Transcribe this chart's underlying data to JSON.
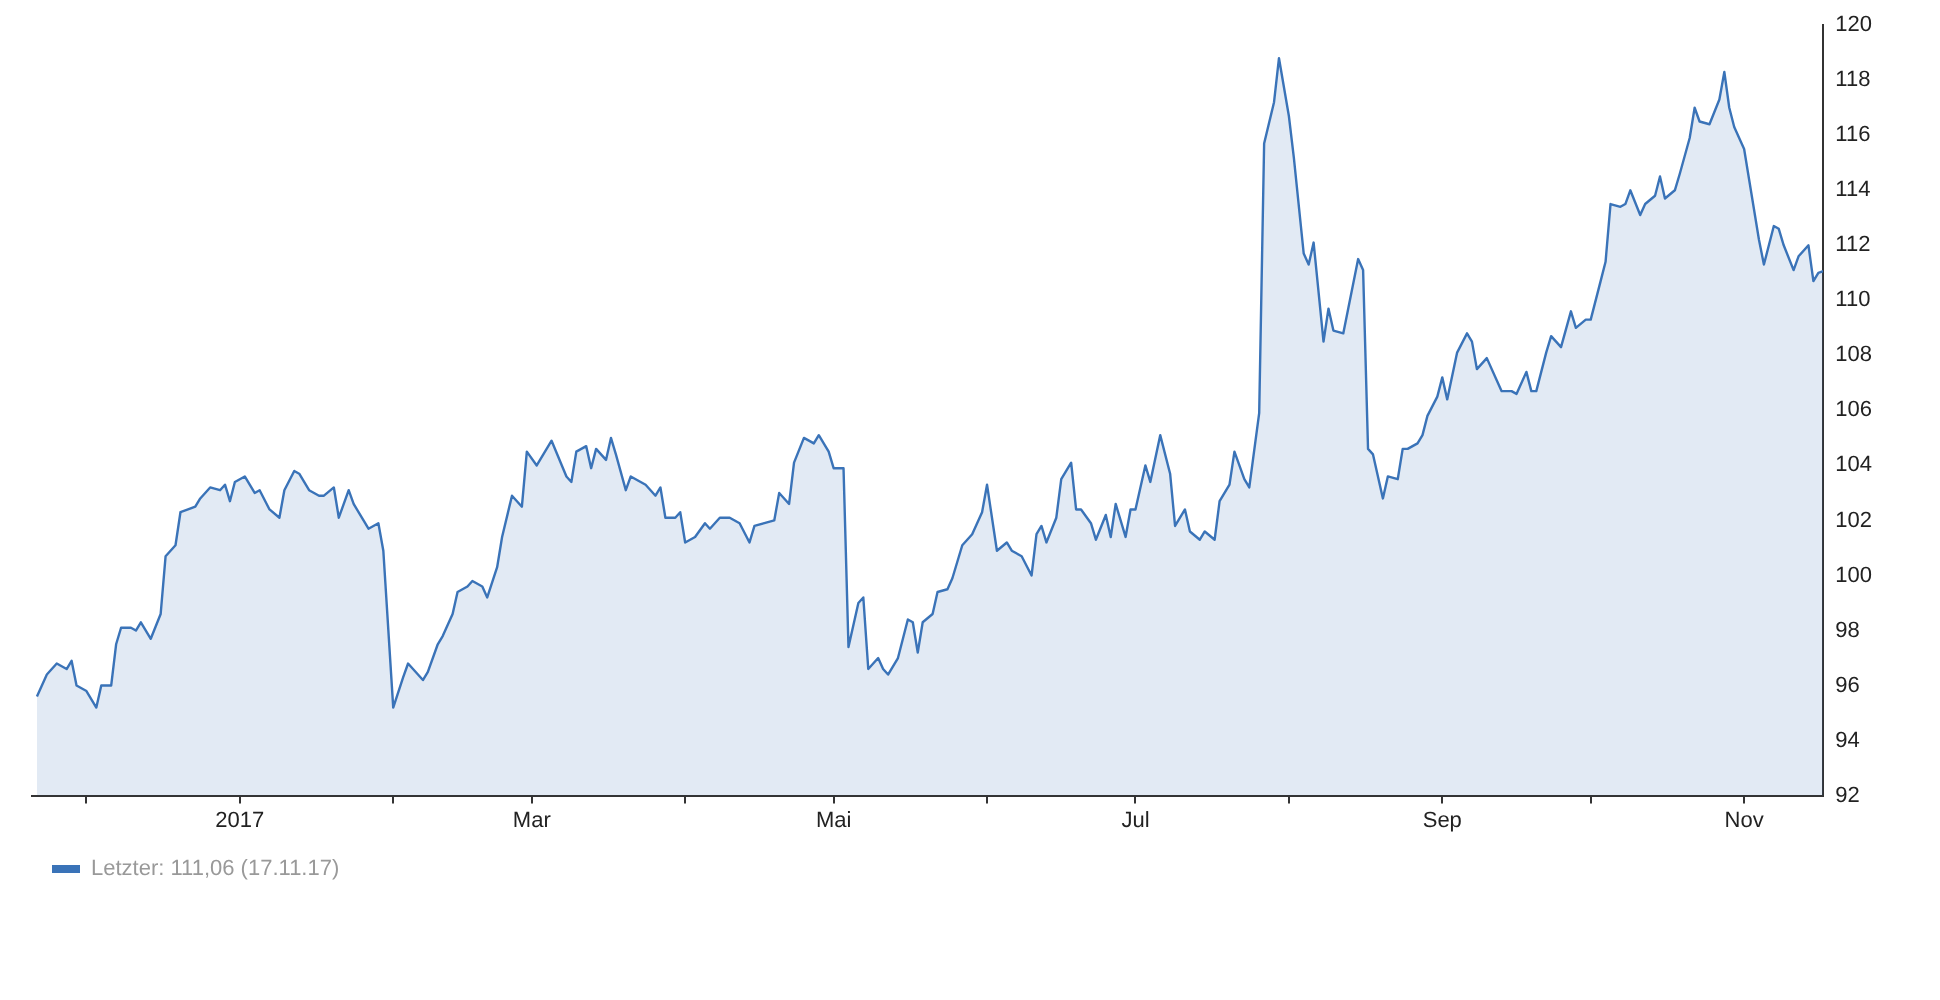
{
  "chart_data": {
    "type": "area",
    "legend": "bottom left",
    "marker": "none",
    "xlim": [
      "2016-11-20",
      "2017-11-17"
    ],
    "xticks": [
      {
        "value": "2016-12-01",
        "label": null
      },
      {
        "value": "2017-01-01",
        "label": "2017"
      },
      {
        "value": "2017-02-01",
        "label": null
      },
      {
        "value": "2017-03-01",
        "label": "Mar"
      },
      {
        "value": "2017-04-01",
        "label": null
      },
      {
        "value": "2017-05-01",
        "label": "Mai"
      },
      {
        "value": "2017-06-01",
        "label": null
      },
      {
        "value": "2017-07-01",
        "label": "Jul"
      },
      {
        "value": "2017-08-01",
        "label": null
      },
      {
        "value": "2017-09-01",
        "label": "Sep"
      },
      {
        "value": "2017-10-01",
        "label": null
      },
      {
        "value": "2017-11-01",
        "label": "Nov"
      }
    ],
    "ylim": [
      92,
      120
    ],
    "yticks": [
      92,
      94,
      96,
      98,
      100,
      102,
      104,
      106,
      108,
      110,
      112,
      114,
      116,
      118,
      120
    ],
    "x": [
      "2016-11-21",
      "2016-11-23",
      "2016-11-25",
      "2016-11-27",
      "2016-11-28",
      "2016-11-29",
      "2016-12-01",
      "2016-12-03",
      "2016-12-04",
      "2016-12-06",
      "2016-12-07",
      "2016-12-08",
      "2016-12-10",
      "2016-12-11",
      "2016-12-12",
      "2016-12-14",
      "2016-12-16",
      "2016-12-17",
      "2016-12-19",
      "2016-12-20",
      "2016-12-23",
      "2016-12-24",
      "2016-12-26",
      "2016-12-28",
      "2016-12-29",
      "2016-12-30",
      "2016-12-31",
      "2017-01-02",
      "2017-01-04",
      "2017-01-05",
      "2017-01-07",
      "2017-01-09",
      "2017-01-10",
      "2017-01-12",
      "2017-01-13",
      "2017-01-15",
      "2017-01-17",
      "2017-01-18",
      "2017-01-20",
      "2017-01-21",
      "2017-01-23",
      "2017-01-24",
      "2017-01-26",
      "2017-01-27",
      "2017-01-29",
      "2017-01-30",
      "2017-02-01",
      "2017-02-03",
      "2017-02-04",
      "2017-02-06",
      "2017-02-07",
      "2017-02-08",
      "2017-02-10",
      "2017-02-11",
      "2017-02-13",
      "2017-02-14",
      "2017-02-16",
      "2017-02-17",
      "2017-02-19",
      "2017-02-20",
      "2017-02-22",
      "2017-02-23",
      "2017-02-25",
      "2017-02-26",
      "2017-02-27",
      "2017-02-28",
      "2017-03-02",
      "2017-03-05",
      "2017-03-08",
      "2017-03-09",
      "2017-03-10",
      "2017-03-12",
      "2017-03-13",
      "2017-03-14",
      "2017-03-16",
      "2017-03-17",
      "2017-03-18",
      "2017-03-20",
      "2017-03-21",
      "2017-03-24",
      "2017-03-26",
      "2017-03-27",
      "2017-03-28",
      "2017-03-30",
      "2017-03-31",
      "2017-04-01",
      "2017-04-03",
      "2017-04-05",
      "2017-04-06",
      "2017-04-08",
      "2017-04-10",
      "2017-04-11",
      "2017-04-12",
      "2017-04-14",
      "2017-04-15",
      "2017-04-17",
      "2017-04-19",
      "2017-04-20",
      "2017-04-22",
      "2017-04-23",
      "2017-04-25",
      "2017-04-27",
      "2017-04-28",
      "2017-04-30",
      "2017-05-01",
      "2017-05-03",
      "2017-05-04",
      "2017-05-06",
      "2017-05-07",
      "2017-05-08",
      "2017-05-10",
      "2017-05-11",
      "2017-05-12",
      "2017-05-14",
      "2017-05-16",
      "2017-05-17",
      "2017-05-18",
      "2017-05-19",
      "2017-05-21",
      "2017-05-22",
      "2017-05-24",
      "2017-05-25",
      "2017-05-27",
      "2017-05-28",
      "2017-05-29",
      "2017-05-31",
      "2017-06-01",
      "2017-06-03",
      "2017-06-05",
      "2017-06-06",
      "2017-06-08",
      "2017-06-10",
      "2017-06-11",
      "2017-06-12",
      "2017-06-13",
      "2017-06-15",
      "2017-06-16",
      "2017-06-18",
      "2017-06-19",
      "2017-06-20",
      "2017-06-22",
      "2017-06-23",
      "2017-06-25",
      "2017-06-26",
      "2017-06-27",
      "2017-06-29",
      "2017-06-30",
      "2017-07-01",
      "2017-07-03",
      "2017-07-04",
      "2017-07-06",
      "2017-07-08",
      "2017-07-09",
      "2017-07-11",
      "2017-07-12",
      "2017-07-14",
      "2017-07-15",
      "2017-07-17",
      "2017-07-18",
      "2017-07-20",
      "2017-07-21",
      "2017-07-23",
      "2017-07-24",
      "2017-07-26",
      "2017-07-27",
      "2017-07-29",
      "2017-07-30",
      "2017-08-01",
      "2017-08-02",
      "2017-08-04",
      "2017-08-05",
      "2017-08-06",
      "2017-08-08",
      "2017-08-09",
      "2017-08-10",
      "2017-08-12",
      "2017-08-13",
      "2017-08-15",
      "2017-08-16",
      "2017-08-17",
      "2017-08-18",
      "2017-08-20",
      "2017-08-21",
      "2017-08-23",
      "2017-08-24",
      "2017-08-25",
      "2017-08-27",
      "2017-08-28",
      "2017-08-29",
      "2017-08-31",
      "2017-09-01",
      "2017-09-02",
      "2017-09-04",
      "2017-09-06",
      "2017-09-07",
      "2017-09-08",
      "2017-09-10",
      "2017-09-12",
      "2017-09-13",
      "2017-09-15",
      "2017-09-16",
      "2017-09-18",
      "2017-09-19",
      "2017-09-20",
      "2017-09-22",
      "2017-09-23",
      "2017-09-25",
      "2017-09-27",
      "2017-09-28",
      "2017-09-30",
      "2017-10-01",
      "2017-10-03",
      "2017-10-04",
      "2017-10-05",
      "2017-10-07",
      "2017-10-08",
      "2017-10-09",
      "2017-10-11",
      "2017-10-12",
      "2017-10-14",
      "2017-10-15",
      "2017-10-16",
      "2017-10-18",
      "2017-10-19",
      "2017-10-21",
      "2017-10-22",
      "2017-10-23",
      "2017-10-25",
      "2017-10-27",
      "2017-10-28",
      "2017-10-29",
      "2017-10-30",
      "2017-11-01",
      "2017-11-02",
      "2017-11-04",
      "2017-11-05",
      "2017-11-07",
      "2017-11-08",
      "2017-11-09",
      "2017-11-11",
      "2017-11-12",
      "2017-11-14",
      "2017-11-15",
      "2017-11-16",
      "2017-11-17"
    ],
    "series": [
      {
        "name": "Letzter: 111,06 (17.11.17)",
        "color": "#3a73b8",
        "values": [
          95.6,
          96.4,
          96.8,
          96.6,
          96.9,
          96.0,
          95.8,
          95.2,
          96.0,
          96.0,
          97.5,
          98.1,
          98.1,
          98.0,
          98.3,
          97.7,
          98.6,
          100.7,
          101.1,
          102.3,
          102.5,
          102.8,
          103.2,
          103.1,
          103.3,
          102.7,
          103.4,
          103.6,
          103.0,
          103.1,
          102.4,
          102.1,
          103.1,
          103.8,
          103.7,
          103.1,
          102.9,
          102.9,
          103.2,
          102.1,
          103.1,
          102.6,
          102.0,
          101.7,
          101.9,
          100.9,
          95.2,
          96.3,
          96.8,
          96.4,
          96.2,
          96.5,
          97.5,
          97.8,
          98.6,
          99.4,
          99.6,
          99.8,
          99.6,
          99.2,
          100.3,
          101.4,
          102.9,
          102.7,
          102.5,
          104.5,
          104.0,
          104.9,
          103.6,
          103.4,
          104.5,
          104.7,
          103.9,
          104.6,
          104.2,
          105.0,
          104.4,
          103.1,
          103.6,
          103.3,
          102.9,
          103.2,
          102.1,
          102.1,
          102.3,
          101.2,
          101.4,
          101.9,
          101.7,
          102.1,
          102.1,
          102.0,
          101.9,
          101.2,
          101.8,
          101.9,
          102.0,
          103.0,
          102.6,
          104.1,
          105.0,
          104.8,
          105.1,
          104.5,
          103.9,
          103.9,
          97.4,
          99.0,
          99.2,
          96.6,
          97.0,
          96.6,
          96.4,
          97.0,
          98.4,
          98.3,
          97.2,
          98.3,
          98.6,
          99.4,
          99.5,
          99.9,
          101.1,
          101.3,
          101.5,
          102.3,
          103.3,
          100.9,
          101.2,
          100.9,
          100.7,
          100.0,
          101.5,
          101.8,
          101.2,
          102.1,
          103.5,
          104.1,
          102.4,
          102.4,
          101.9,
          101.3,
          102.2,
          101.4,
          102.6,
          101.4,
          102.4,
          102.4,
          104.0,
          103.4,
          105.1,
          103.7,
          101.8,
          102.4,
          101.6,
          101.3,
          101.6,
          101.3,
          102.7,
          103.3,
          104.5,
          103.5,
          103.2,
          105.9,
          115.7,
          117.2,
          118.8,
          116.7,
          115.2,
          111.7,
          111.3,
          112.1,
          108.5,
          109.7,
          108.9,
          108.8,
          109.7,
          111.5,
          111.1,
          104.6,
          104.4,
          102.8,
          103.6,
          103.5,
          104.6,
          104.6,
          104.8,
          105.1,
          105.8,
          106.5,
          107.2,
          106.4,
          108.1,
          108.8,
          108.5,
          107.5,
          107.9,
          107.1,
          106.7,
          106.7,
          106.6,
          107.4,
          106.7,
          106.7,
          108.1,
          108.7,
          108.3,
          109.6,
          109.0,
          109.3,
          109.3,
          110.7,
          111.4,
          113.5,
          113.4,
          113.5,
          114.0,
          113.1,
          113.5,
          113.8,
          114.5,
          113.7,
          114.0,
          114.6,
          115.9,
          117.0,
          116.5,
          116.4,
          117.3,
          118.3,
          117.0,
          116.3,
          115.5,
          114.4,
          112.2,
          111.3,
          112.7,
          112.6,
          112.0,
          111.1,
          111.6,
          112.0,
          110.7,
          111.0,
          111.06
        ]
      }
    ]
  }
}
